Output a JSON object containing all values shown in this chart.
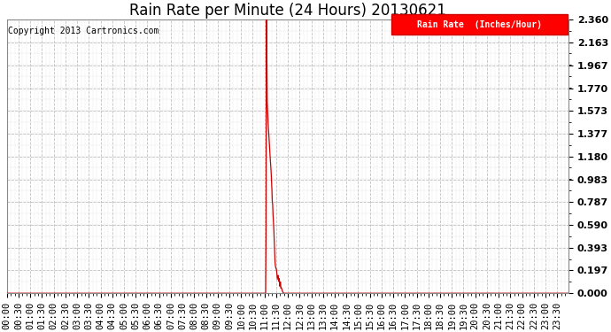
{
  "title": "Rain Rate per Minute (24 Hours) 20130621",
  "copyright": "Copyright 2013 Cartronics.com",
  "legend_label": "Rain Rate  (Inches/Hour)",
  "ylabel_ticks": [
    0.0,
    0.197,
    0.393,
    0.59,
    0.787,
    0.983,
    1.18,
    1.377,
    1.573,
    1.77,
    1.967,
    2.163,
    2.36
  ],
  "ymin": 0.0,
  "ymax": 2.36,
  "line_color": "#cc0000",
  "background_color": "#ffffff",
  "grid_color": "#c0c0c0",
  "title_fontsize": 12,
  "copyright_fontsize": 7,
  "tick_fontsize": 7.5,
  "legend_bg": "#ff0000",
  "legend_text_color": "#ffffff",
  "total_minutes": 1440,
  "spike_minute": 665
}
